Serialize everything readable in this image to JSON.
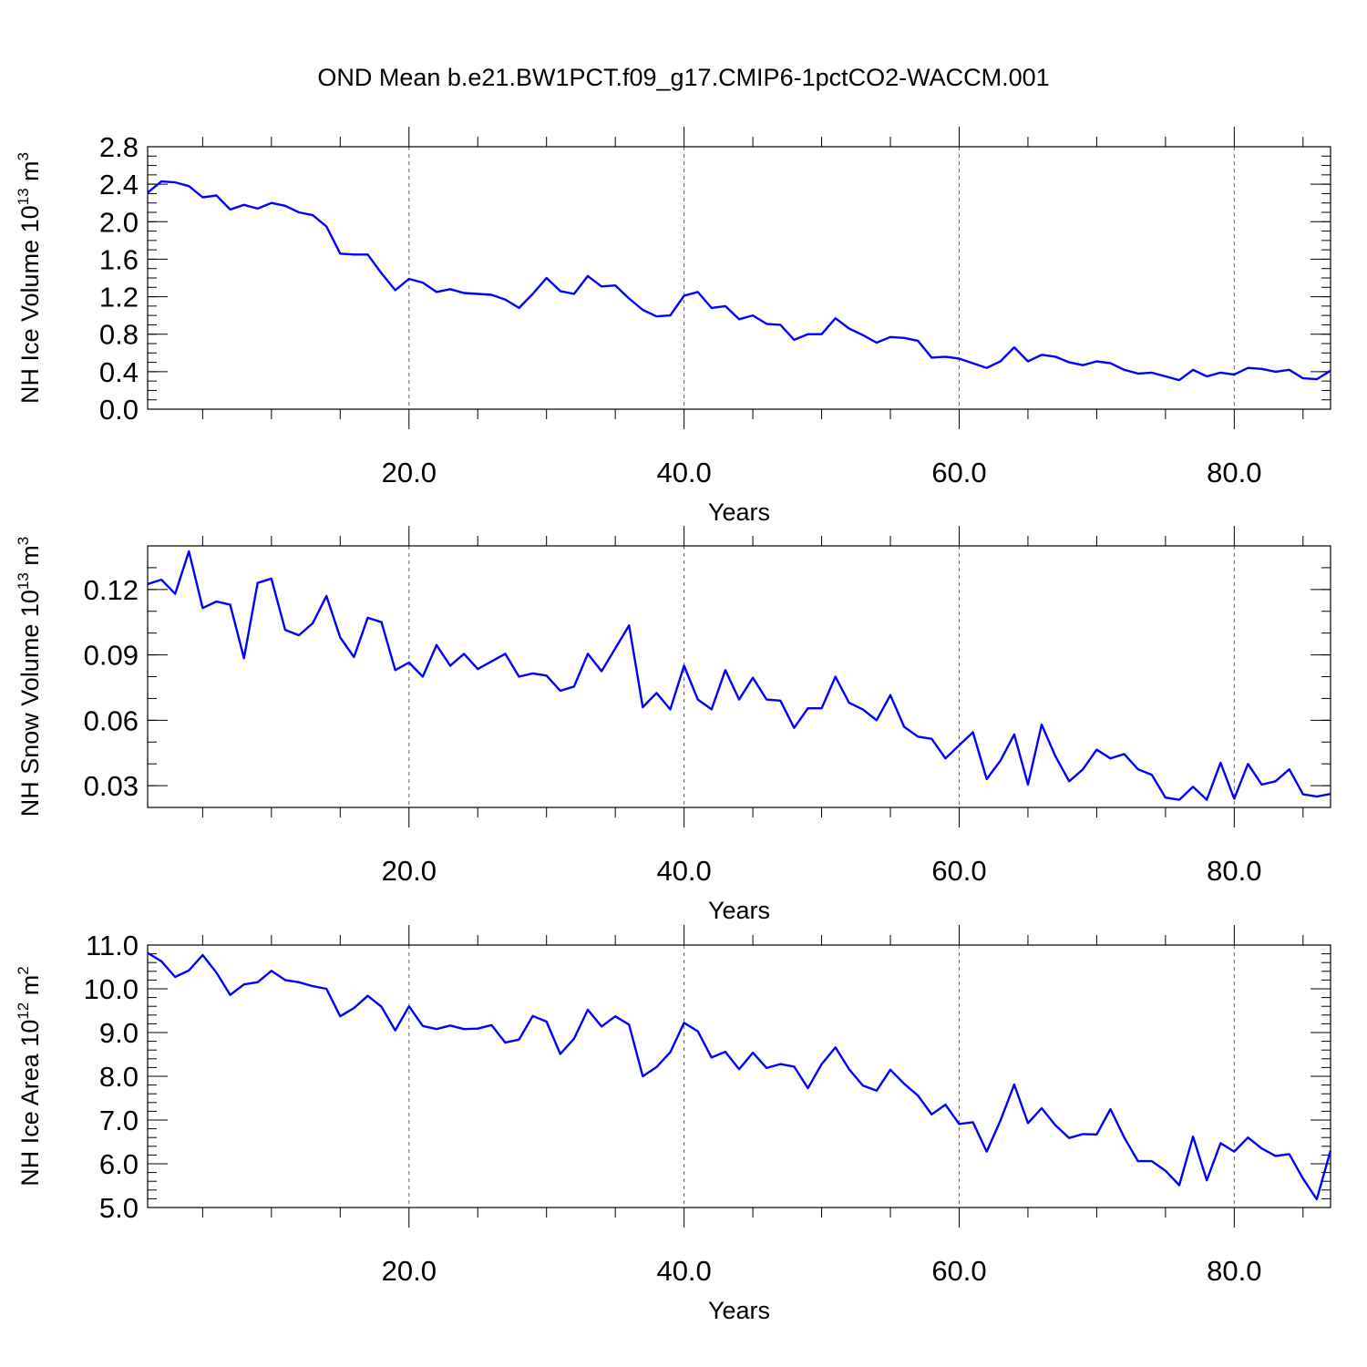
{
  "figure": {
    "title": "OND Mean b.e21.BW1PCT.f09_g17.CMIP6-1pctCO2-WACCM.001"
  },
  "chart_data": [
    {
      "type": "line",
      "title": "",
      "xlabel": "Years",
      "ylabel": "NH Ice Volume 10",
      "ylabel_sup": "13",
      "ylabel_unit": " m",
      "ylabel_unit_sup": "3",
      "xlim": [
        1,
        87
      ],
      "ylim": [
        0.0,
        2.8
      ],
      "xticks": [
        20,
        40,
        60,
        80
      ],
      "xtick_labels": [
        "20.0",
        "40.0",
        "60.0",
        "80.0"
      ],
      "yticks": [
        0.0,
        0.4,
        0.8,
        1.2,
        1.6,
        2.0,
        2.4,
        2.8
      ],
      "ytick_labels": [
        "0.0",
        "0.4",
        "0.8",
        "1.2",
        "1.6",
        "2.0",
        "2.4",
        "2.8"
      ],
      "y_minor_step": 0.1,
      "x_minor_step": 5,
      "vertical_grid_dashed": true,
      "line_color": "#0000ff",
      "x": [
        1,
        2,
        3,
        4,
        5,
        6,
        7,
        8,
        9,
        10,
        11,
        12,
        13,
        14,
        15,
        16,
        17,
        18,
        19,
        20,
        21,
        22,
        23,
        24,
        25,
        26,
        27,
        28,
        29,
        30,
        31,
        32,
        33,
        34,
        35,
        36,
        37,
        38,
        39,
        40,
        41,
        42,
        43,
        44,
        45,
        46,
        47,
        48,
        49,
        50,
        51,
        52,
        53,
        54,
        55,
        56,
        57,
        58,
        59,
        60,
        61,
        62,
        63,
        64,
        65,
        66,
        67,
        68,
        69,
        70,
        71,
        72,
        73,
        74,
        75,
        76,
        77,
        78,
        79,
        80,
        81,
        82,
        83,
        84,
        85,
        86,
        87
      ],
      "y": [
        2.31,
        2.43,
        2.42,
        2.38,
        2.26,
        2.28,
        2.13,
        2.18,
        2.14,
        2.2,
        2.17,
        2.1,
        2.07,
        1.95,
        1.66,
        1.65,
        1.65,
        1.45,
        1.27,
        1.39,
        1.35,
        1.25,
        1.28,
        1.24,
        1.23,
        1.22,
        1.17,
        1.08,
        1.23,
        1.4,
        1.26,
        1.23,
        1.42,
        1.31,
        1.32,
        1.18,
        1.06,
        0.99,
        1.0,
        1.21,
        1.25,
        1.08,
        1.1,
        0.96,
        1.0,
        0.91,
        0.9,
        0.74,
        0.8,
        0.8,
        0.97,
        0.86,
        0.79,
        0.71,
        0.77,
        0.76,
        0.73,
        0.55,
        0.56,
        0.54,
        0.49,
        0.44,
        0.51,
        0.66,
        0.51,
        0.58,
        0.56,
        0.5,
        0.47,
        0.51,
        0.49,
        0.42,
        0.38,
        0.39,
        0.35,
        0.31,
        0.42,
        0.35,
        0.39,
        0.37,
        0.44,
        0.43,
        0.4,
        0.42,
        0.33,
        0.32,
        0.41
      ]
    },
    {
      "type": "line",
      "title": "",
      "xlabel": "Years",
      "ylabel": "NH Snow Volume 10",
      "ylabel_sup": "13",
      "ylabel_unit": " m",
      "ylabel_unit_sup": "3",
      "xlim": [
        1,
        87
      ],
      "ylim": [
        0.02,
        0.14
      ],
      "xticks": [
        20,
        40,
        60,
        80
      ],
      "xtick_labels": [
        "20.0",
        "40.0",
        "60.0",
        "80.0"
      ],
      "yticks": [
        0.03,
        0.06,
        0.09,
        0.12
      ],
      "ytick_labels": [
        "0.03",
        "0.06",
        "0.09",
        "0.12"
      ],
      "y_minor_step": 0.01,
      "x_minor_step": 5,
      "vertical_grid_dashed": true,
      "line_color": "#0000ff",
      "x": [
        1,
        2,
        3,
        4,
        5,
        6,
        7,
        8,
        9,
        10,
        11,
        12,
        13,
        14,
        15,
        16,
        17,
        18,
        19,
        20,
        21,
        22,
        23,
        24,
        25,
        26,
        27,
        28,
        29,
        30,
        31,
        32,
        33,
        34,
        35,
        36,
        37,
        38,
        39,
        40,
        41,
        42,
        43,
        44,
        45,
        46,
        47,
        48,
        49,
        50,
        51,
        52,
        53,
        54,
        55,
        56,
        57,
        58,
        59,
        60,
        61,
        62,
        63,
        64,
        65,
        66,
        67,
        68,
        69,
        70,
        71,
        72,
        73,
        74,
        75,
        76,
        77,
        78,
        79,
        80,
        81,
        82,
        83,
        84,
        85,
        86,
        87
      ],
      "y": [
        0.1225,
        0.1245,
        0.118,
        0.1375,
        0.1115,
        0.1145,
        0.113,
        0.0885,
        0.123,
        0.125,
        0.1015,
        0.099,
        0.1045,
        0.117,
        0.098,
        0.089,
        0.107,
        0.105,
        0.083,
        0.0865,
        0.08,
        0.0945,
        0.085,
        0.0905,
        0.0835,
        0.087,
        0.0905,
        0.08,
        0.0815,
        0.0805,
        0.0735,
        0.0755,
        0.0905,
        0.0825,
        0.093,
        0.1035,
        0.066,
        0.0725,
        0.065,
        0.085,
        0.0695,
        0.065,
        0.083,
        0.0695,
        0.0795,
        0.0695,
        0.069,
        0.0565,
        0.0655,
        0.0655,
        0.08,
        0.068,
        0.065,
        0.06,
        0.0715,
        0.057,
        0.0525,
        0.0515,
        0.0425,
        0.0485,
        0.0545,
        0.033,
        0.0415,
        0.0535,
        0.0305,
        0.058,
        0.0435,
        0.032,
        0.0375,
        0.0465,
        0.0425,
        0.0445,
        0.0375,
        0.035,
        0.0245,
        0.0235,
        0.0295,
        0.0235,
        0.0405,
        0.024,
        0.04,
        0.0305,
        0.032,
        0.0375,
        0.026,
        0.025,
        0.0262
      ]
    },
    {
      "type": "line",
      "title": "",
      "xlabel": "Years",
      "ylabel": "NH Ice Area 10",
      "ylabel_sup": "12",
      "ylabel_unit": " m",
      "ylabel_unit_sup": "2",
      "xlim": [
        1,
        87
      ],
      "ylim": [
        5.0,
        11.0
      ],
      "xticks": [
        20,
        40,
        60,
        80
      ],
      "xtick_labels": [
        "20.0",
        "40.0",
        "60.0",
        "80.0"
      ],
      "yticks": [
        5.0,
        6.0,
        7.0,
        8.0,
        9.0,
        10.0,
        11.0
      ],
      "ytick_labels": [
        "5.0",
        "6.0",
        "7.0",
        "8.0",
        "9.0",
        "10.0",
        "11.0"
      ],
      "y_minor_step": 0.2,
      "x_minor_step": 5,
      "vertical_grid_dashed": true,
      "line_color": "#0000ff",
      "x": [
        1,
        2,
        3,
        4,
        5,
        6,
        7,
        8,
        9,
        10,
        11,
        12,
        13,
        14,
        15,
        16,
        17,
        18,
        19,
        20,
        21,
        22,
        23,
        24,
        25,
        26,
        27,
        28,
        29,
        30,
        31,
        32,
        33,
        34,
        35,
        36,
        37,
        38,
        39,
        40,
        41,
        42,
        43,
        44,
        45,
        46,
        47,
        48,
        49,
        50,
        51,
        52,
        53,
        54,
        55,
        56,
        57,
        58,
        59,
        60,
        61,
        62,
        63,
        64,
        65,
        66,
        67,
        68,
        69,
        70,
        71,
        72,
        73,
        74,
        75,
        76,
        77,
        78,
        79,
        80,
        81,
        82,
        83,
        84,
        85,
        86,
        87
      ],
      "y": [
        10.82,
        10.63,
        10.27,
        10.42,
        10.77,
        10.37,
        9.86,
        10.1,
        10.15,
        10.41,
        10.2,
        10.15,
        10.06,
        10.0,
        9.37,
        9.56,
        9.84,
        9.59,
        9.05,
        9.6,
        9.15,
        9.08,
        9.16,
        9.08,
        9.09,
        9.17,
        8.77,
        8.84,
        9.38,
        9.25,
        8.51,
        8.86,
        9.52,
        9.14,
        9.37,
        9.18,
        8.0,
        8.21,
        8.55,
        9.22,
        9.03,
        8.43,
        8.56,
        8.16,
        8.54,
        8.19,
        8.28,
        8.22,
        7.73,
        8.28,
        8.66,
        8.16,
        7.79,
        7.67,
        8.15,
        7.83,
        7.56,
        7.13,
        7.35,
        6.91,
        6.95,
        6.28,
        6.99,
        7.81,
        6.93,
        7.27,
        6.88,
        6.59,
        6.68,
        6.67,
        7.25,
        6.6,
        6.06,
        6.06,
        5.84,
        5.51,
        6.62,
        5.62,
        6.47,
        6.28,
        6.6,
        6.35,
        6.18,
        6.22,
        5.66,
        5.19,
        6.3
      ]
    }
  ]
}
